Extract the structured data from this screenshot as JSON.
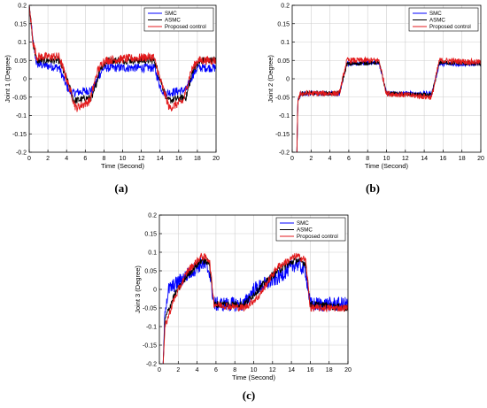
{
  "figure": {
    "panel_captions": [
      "(a)",
      "(b)",
      "(c)"
    ]
  },
  "chart_data": [
    {
      "type": "line",
      "panel": "(a)",
      "xlabel": "Time (Second)",
      "ylabel": "Joint 1 (Degree)",
      "xlim": [
        0,
        20
      ],
      "ylim": [
        -0.2,
        0.2
      ],
      "xticks": [
        0,
        2,
        4,
        6,
        8,
        10,
        12,
        14,
        16,
        18,
        20
      ],
      "yticks": [
        -0.2,
        -0.15,
        -0.1,
        -0.05,
        0,
        0.05,
        0.1,
        0.15,
        0.2
      ],
      "grid": "partial",
      "legend": {
        "position": "top-right",
        "entries": [
          "SMC",
          "ASMC",
          "Proposed control"
        ]
      },
      "series": [
        {
          "name": "SMC",
          "color": "#0000ff",
          "noise": 0.012,
          "points": [
            [
              0,
              0.2
            ],
            [
              0.4,
              0.1
            ],
            [
              0.8,
              0.04
            ],
            [
              3.2,
              0.03
            ],
            [
              4.0,
              -0.02
            ],
            [
              4.5,
              -0.04
            ],
            [
              6.8,
              -0.03
            ],
            [
              7.5,
              0.01
            ],
            [
              8.0,
              0.03
            ],
            [
              13.4,
              0.03
            ],
            [
              14.0,
              -0.02
            ],
            [
              14.5,
              -0.04
            ],
            [
              16.8,
              -0.03
            ],
            [
              17.5,
              0.01
            ],
            [
              18.0,
              0.03
            ],
            [
              20,
              0.03
            ]
          ]
        },
        {
          "name": "ASMC",
          "color": "#000000",
          "noise": 0.01,
          "points": [
            [
              0,
              0.2
            ],
            [
              0.4,
              0.1
            ],
            [
              0.8,
              0.05
            ],
            [
              3.2,
              0.05
            ],
            [
              4.0,
              0.0
            ],
            [
              4.8,
              -0.06
            ],
            [
              6.8,
              -0.05
            ],
            [
              7.6,
              0.03
            ],
            [
              8.5,
              0.05
            ],
            [
              13.4,
              0.05
            ],
            [
              14.0,
              0.0
            ],
            [
              14.8,
              -0.06
            ],
            [
              16.8,
              -0.05
            ],
            [
              17.6,
              0.03
            ],
            [
              18.5,
              0.05
            ],
            [
              20,
              0.05
            ]
          ]
        },
        {
          "name": "Proposed control",
          "color": "#e31a1c",
          "noise": 0.012,
          "points": [
            [
              0,
              0.2
            ],
            [
              0.4,
              0.1
            ],
            [
              0.8,
              0.06
            ],
            [
              3.2,
              0.06
            ],
            [
              4.0,
              0.0
            ],
            [
              5.0,
              -0.08
            ],
            [
              6.5,
              -0.06
            ],
            [
              7.3,
              0.02
            ],
            [
              8.0,
              0.05
            ],
            [
              13.3,
              0.06
            ],
            [
              14.0,
              0.0
            ],
            [
              15.0,
              -0.08
            ],
            [
              16.5,
              -0.06
            ],
            [
              17.3,
              0.02
            ],
            [
              18.0,
              0.05
            ],
            [
              20,
              0.05
            ]
          ]
        }
      ]
    },
    {
      "type": "line",
      "panel": "(b)",
      "xlabel": "Time (Second)",
      "ylabel": "Joint 2 (Degree)",
      "xlim": [
        0,
        20
      ],
      "ylim": [
        -0.2,
        0.2
      ],
      "xticks": [
        0,
        2,
        4,
        6,
        8,
        10,
        12,
        14,
        16,
        18,
        20
      ],
      "yticks": [
        -0.2,
        -0.15,
        -0.1,
        -0.05,
        0,
        0.05,
        0.1,
        0.15,
        0.2
      ],
      "grid": "partial",
      "legend": {
        "position": "top-right",
        "entries": [
          "SMC",
          "ASMC",
          "Proposed control"
        ]
      },
      "series": [
        {
          "name": "SMC",
          "color": "#0000ff",
          "noise": 0.006,
          "points": [
            [
              0.5,
              -0.2
            ],
            [
              0.6,
              -0.06
            ],
            [
              0.9,
              -0.04
            ],
            [
              5.0,
              -0.04
            ],
            [
              5.8,
              0.04
            ],
            [
              9.2,
              0.045
            ],
            [
              10.0,
              -0.04
            ],
            [
              14.8,
              -0.04
            ],
            [
              15.6,
              0.04
            ],
            [
              20,
              0.04
            ]
          ]
        },
        {
          "name": "ASMC",
          "color": "#000000",
          "noise": 0.006,
          "points": [
            [
              0.5,
              -0.2
            ],
            [
              0.6,
              -0.06
            ],
            [
              0.9,
              -0.04
            ],
            [
              5.0,
              -0.04
            ],
            [
              5.8,
              0.04
            ],
            [
              9.2,
              0.045
            ],
            [
              10.0,
              -0.04
            ],
            [
              14.8,
              -0.045
            ],
            [
              15.6,
              0.045
            ],
            [
              20,
              0.04
            ]
          ]
        },
        {
          "name": "Proposed control",
          "color": "#e31a1c",
          "noise": 0.008,
          "points": [
            [
              0.5,
              -0.2
            ],
            [
              0.6,
              -0.06
            ],
            [
              0.9,
              -0.04
            ],
            [
              5.0,
              -0.04
            ],
            [
              5.8,
              0.05
            ],
            [
              9.2,
              0.05
            ],
            [
              10.0,
              -0.04
            ],
            [
              14.8,
              -0.05
            ],
            [
              15.6,
              0.05
            ],
            [
              20,
              0.045
            ]
          ]
        }
      ]
    },
    {
      "type": "line",
      "panel": "(c)",
      "xlabel": "Time (Second)",
      "ylabel": "Joint 3 (Degree)",
      "xlim": [
        0,
        20
      ],
      "ylim": [
        -0.2,
        0.2
      ],
      "xticks": [
        0,
        2,
        4,
        6,
        8,
        10,
        12,
        14,
        16,
        18,
        20
      ],
      "yticks": [
        -0.2,
        -0.15,
        -0.1,
        -0.05,
        0,
        0.05,
        0.1,
        0.15,
        0.2
      ],
      "grid": "partial",
      "legend": {
        "position": "top-right",
        "entries": [
          "SMC",
          "ASMC",
          "Proposed control"
        ]
      },
      "series": [
        {
          "name": "SMC",
          "color": "#0000ff",
          "noise": 0.02,
          "points": [
            [
              0.4,
              -0.2
            ],
            [
              0.6,
              -0.05
            ],
            [
              1.0,
              0.0
            ],
            [
              2.5,
              0.03
            ],
            [
              4.5,
              0.07
            ],
            [
              5.3,
              0.05
            ],
            [
              5.8,
              -0.04
            ],
            [
              9.0,
              -0.04
            ],
            [
              10.0,
              0.0
            ],
            [
              12.5,
              0.03
            ],
            [
              14.5,
              0.07
            ],
            [
              15.5,
              0.05
            ],
            [
              16.0,
              -0.04
            ],
            [
              20,
              -0.04
            ]
          ]
        },
        {
          "name": "ASMC",
          "color": "#000000",
          "noise": 0.01,
          "points": [
            [
              0.4,
              -0.2
            ],
            [
              0.6,
              -0.08
            ],
            [
              1.5,
              -0.02
            ],
            [
              3.0,
              0.04
            ],
            [
              4.5,
              0.08
            ],
            [
              5.3,
              0.07
            ],
            [
              5.8,
              -0.04
            ],
            [
              9.0,
              -0.04
            ],
            [
              10.5,
              0.0
            ],
            [
              12.5,
              0.05
            ],
            [
              14.5,
              0.08
            ],
            [
              15.5,
              0.07
            ],
            [
              16.0,
              -0.04
            ],
            [
              20,
              -0.05
            ]
          ]
        },
        {
          "name": "Proposed control",
          "color": "#e31a1c",
          "noise": 0.01,
          "points": [
            [
              0.4,
              -0.2
            ],
            [
              0.6,
              -0.1
            ],
            [
              1.5,
              -0.03
            ],
            [
              3.0,
              0.05
            ],
            [
              4.5,
              0.09
            ],
            [
              5.3,
              0.08
            ],
            [
              5.8,
              -0.04
            ],
            [
              9.0,
              -0.05
            ],
            [
              10.5,
              -0.02
            ],
            [
              12.5,
              0.06
            ],
            [
              14.5,
              0.09
            ],
            [
              15.5,
              0.08
            ],
            [
              16.0,
              -0.05
            ],
            [
              20,
              -0.05
            ]
          ]
        }
      ]
    }
  ]
}
